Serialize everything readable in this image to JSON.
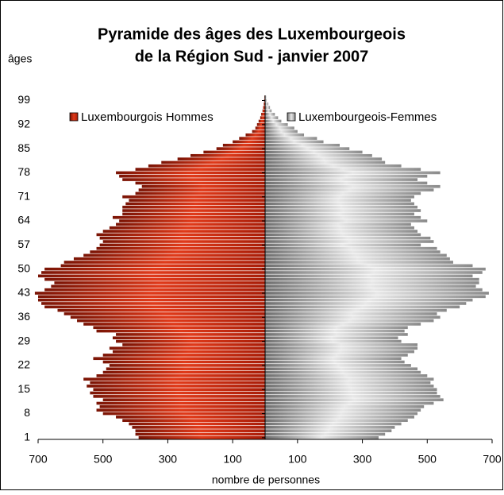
{
  "chart_data": {
    "type": "pyramid",
    "title": [
      "Pyramide des âges des Luxembourgeois",
      "de la Région Sud - janvier 2007"
    ],
    "y_axis_label": "âges",
    "x_axis_label": "nombre de personnes",
    "categories": [
      "1",
      null,
      null,
      null,
      null,
      null,
      null,
      "8",
      null,
      null,
      null,
      null,
      null,
      null,
      "15",
      null,
      null,
      null,
      null,
      null,
      null,
      "22",
      null,
      null,
      null,
      null,
      null,
      null,
      "29",
      null,
      null,
      null,
      null,
      null,
      null,
      "36",
      null,
      null,
      null,
      null,
      null,
      null,
      "43",
      null,
      null,
      null,
      null,
      null,
      null,
      "50",
      null,
      null,
      null,
      null,
      null,
      null,
      "57",
      null,
      null,
      null,
      null,
      null,
      null,
      "64",
      null,
      null,
      null,
      null,
      null,
      null,
      "71",
      null,
      null,
      null,
      null,
      null,
      null,
      "78",
      null,
      null,
      null,
      null,
      null,
      null,
      "85",
      null,
      null,
      null,
      null,
      null,
      null,
      "92",
      null,
      null,
      null,
      null,
      null,
      null,
      "99",
      null
    ],
    "xlim": [
      -700,
      700
    ],
    "xticks": [
      {
        "value": -700,
        "label": "700"
      },
      {
        "value": -500,
        "label": "500"
      },
      {
        "value": -300,
        "label": "300"
      },
      {
        "value": -100,
        "label": "100"
      },
      100,
      300,
      500,
      700
    ],
    "legend": "top",
    "series": [
      {
        "name": "Luxembourgois Hommes",
        "color": "#c8260c",
        "side": "left",
        "values": [
          390,
          400,
          400,
          410,
          420,
          440,
          460,
          500,
          520,
          510,
          520,
          500,
          530,
          540,
          530,
          550,
          540,
          560,
          520,
          500,
          490,
          480,
          500,
          530,
          500,
          470,
          480,
          440,
          460,
          470,
          460,
          520,
          530,
          560,
          580,
          600,
          620,
          640,
          680,
          690,
          700,
          700,
          710,
          680,
          660,
          650,
          680,
          700,
          690,
          680,
          630,
          620,
          590,
          560,
          540,
          520,
          510,
          500,
          510,
          520,
          500,
          480,
          460,
          450,
          470,
          440,
          440,
          440,
          430,
          420,
          440,
          400,
          390,
          380,
          400,
          440,
          450,
          460,
          400,
          360,
          320,
          270,
          230,
          190,
          150,
          130,
          100,
          80,
          60,
          40,
          30,
          25,
          20,
          15,
          12,
          8,
          6,
          4,
          3,
          2
        ]
      },
      {
        "name": "Luxembourgeois-Femmes",
        "color": "#9a9a9a",
        "side": "right",
        "values": [
          350,
          370,
          390,
          400,
          420,
          440,
          460,
          470,
          480,
          490,
          520,
          550,
          540,
          530,
          530,
          520,
          510,
          520,
          500,
          480,
          470,
          450,
          430,
          420,
          440,
          460,
          470,
          470,
          420,
          410,
          440,
          430,
          440,
          480,
          520,
          540,
          530,
          560,
          600,
          620,
          640,
          680,
          690,
          670,
          650,
          660,
          660,
          640,
          670,
          680,
          640,
          580,
          570,
          560,
          540,
          530,
          480,
          520,
          510,
          480,
          470,
          460,
          450,
          500,
          480,
          460,
          480,
          470,
          460,
          450,
          460,
          480,
          520,
          540,
          500,
          470,
          500,
          540,
          480,
          420,
          370,
          360,
          330,
          300,
          260,
          230,
          180,
          160,
          120,
          100,
          90,
          70,
          50,
          40,
          30,
          20,
          15,
          10,
          5,
          3
        ]
      }
    ]
  }
}
